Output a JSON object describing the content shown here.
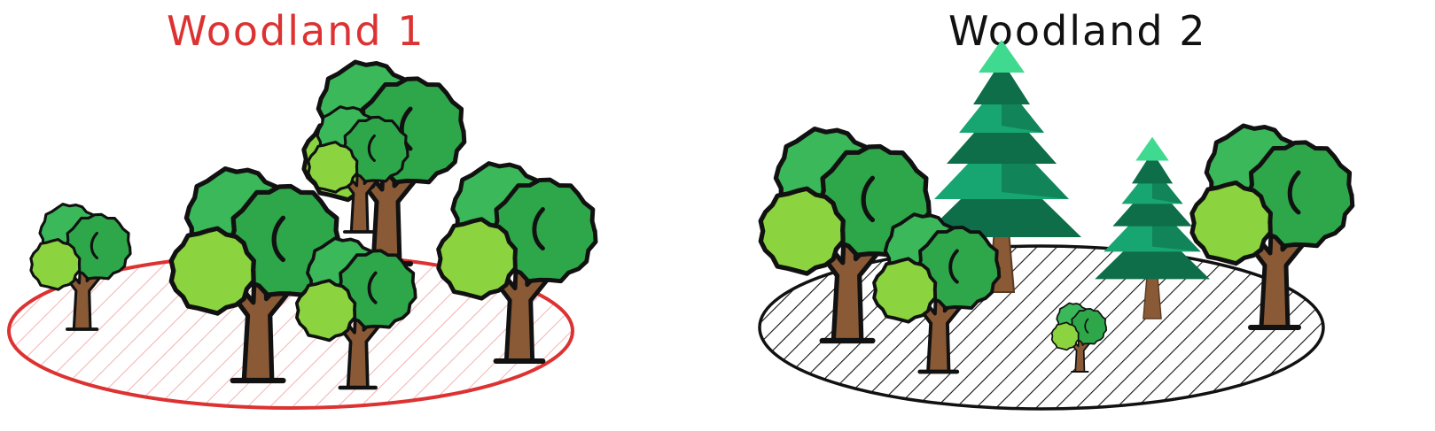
{
  "woodland_1": {
    "title": "Woodland 1",
    "color": "#dc3232",
    "hatch_color": "#f2b3b3",
    "trees": [
      {
        "kind": "deciduous",
        "size": "small"
      },
      {
        "kind": "deciduous",
        "size": "large"
      },
      {
        "kind": "deciduous",
        "size": "large"
      },
      {
        "kind": "deciduous",
        "size": "large"
      },
      {
        "kind": "deciduous",
        "size": "medium"
      },
      {
        "kind": "deciduous",
        "size": "large"
      }
    ]
  },
  "woodland_2": {
    "title": "Woodland 2",
    "color": "#111111",
    "hatch_color": "#111111",
    "trees": [
      {
        "kind": "deciduous",
        "size": "large"
      },
      {
        "kind": "conifer",
        "size": "large"
      },
      {
        "kind": "conifer",
        "size": "medium"
      },
      {
        "kind": "deciduous",
        "size": "large"
      },
      {
        "kind": "deciduous",
        "size": "medium"
      },
      {
        "kind": "deciduous",
        "size": "small"
      }
    ]
  },
  "colors": {
    "leaf_light": "#8bd440",
    "leaf_mid": "#3bb85a",
    "leaf_dark": "#2ea64a",
    "trunk": "#8a5a36",
    "conifer_light": "#17a672",
    "conifer_dark": "#0d6e49",
    "conifer_tip": "#3fd98f",
    "outline": "#111111"
  }
}
